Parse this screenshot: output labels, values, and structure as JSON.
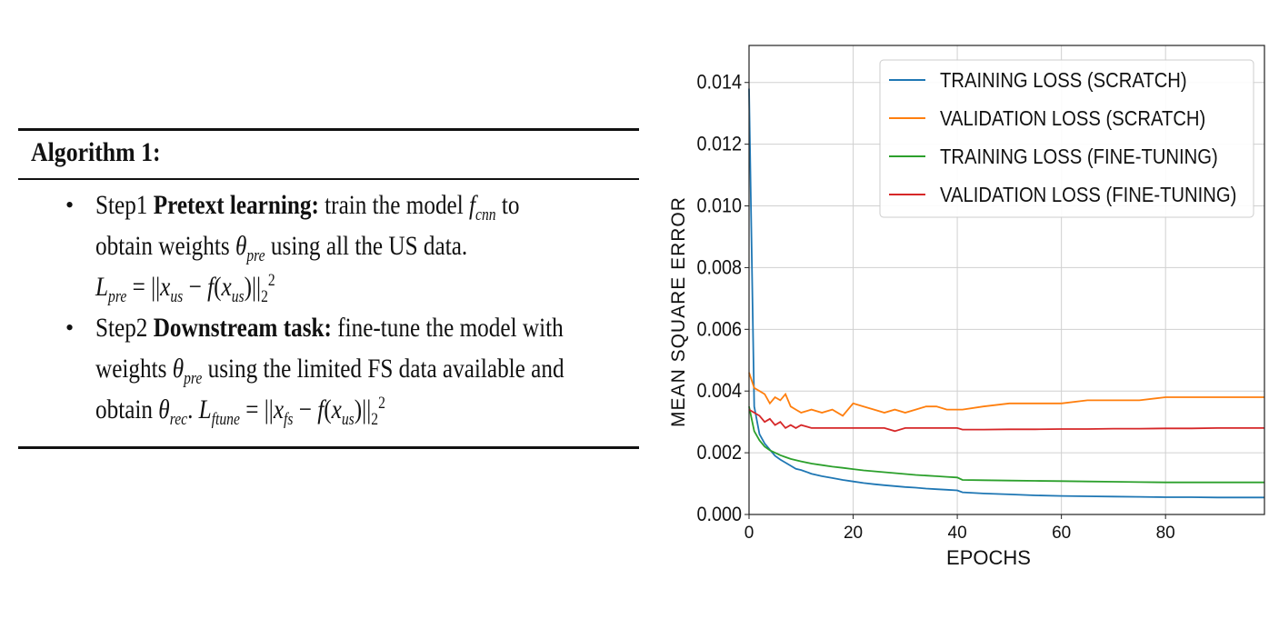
{
  "algorithm": {
    "title": "Algorithm 1:",
    "step1": {
      "line1_pre": "Step1 ",
      "line1_bold": "Pretext learning:",
      "line1_post": " train the model ",
      "f_sym": "f",
      "f_sub": "cnn",
      "line1_end": " to",
      "line2_pre": "obtain weights ",
      "theta_sym": "θ",
      "theta_sub": "pre",
      "line2_post": " using all the US data.",
      "loss_sym": "L",
      "loss_sub": "pre",
      "eq_a": " = ||",
      "x_sym": "x",
      "x_sub": "us",
      "eq_b": " − ",
      "eq_c": "f",
      "eq_d": "(",
      "eq_e": "x",
      "eq_f": "us",
      "eq_g": ")||",
      "sub2": "2",
      "sup2": "2"
    },
    "step2": {
      "line1_pre": "Step2 ",
      "line1_bold": "Downstream task:",
      "line1_post": " fine-tune the model with",
      "line2_pre": "weights ",
      "theta_sym": "θ",
      "theta_sub": "pre",
      "line2_post": " using the limited FS data available and",
      "line3_pre": "obtain ",
      "rec_sym": "θ",
      "rec_sub": "rec",
      "line3_mid": ". ",
      "loss_sym": "L",
      "loss_sub": "ftune",
      "eq_a": " = ||",
      "x_sym": "x",
      "x_sub": "fs",
      "eq_b": " − ",
      "eq_c": "f",
      "eq_d": "(",
      "eq_e": "x",
      "eq_f": "us",
      "eq_g": ")||",
      "sub2": "2",
      "sup2": "2"
    }
  },
  "chart_data": {
    "type": "line",
    "title": "",
    "xlabel": "EPOCHS",
    "ylabel": "MEAN SQUARE ERROR",
    "xlim": [
      0,
      99
    ],
    "ylim": [
      0,
      0.0152
    ],
    "x_ticks": [
      0,
      20,
      40,
      60,
      80
    ],
    "y_ticks": [
      0.0,
      0.002,
      0.004,
      0.006,
      0.008,
      0.01,
      0.012,
      0.014
    ],
    "y_tick_labels": [
      "0.000",
      "0.002",
      "0.004",
      "0.006",
      "0.008",
      "0.010",
      "0.012",
      "0.014"
    ],
    "grid": true,
    "legend_position": "top-right",
    "x": [
      0,
      1,
      2,
      3,
      4,
      5,
      6,
      7,
      8,
      9,
      10,
      12,
      14,
      16,
      18,
      20,
      22,
      24,
      26,
      28,
      30,
      32,
      34,
      36,
      38,
      40,
      41,
      45,
      50,
      55,
      60,
      65,
      70,
      75,
      80,
      85,
      90,
      95,
      99
    ],
    "series": [
      {
        "name": "TRAINING LOSS (SCRATCH)",
        "color": "#1f77b4",
        "values": [
          0.0138,
          0.0035,
          0.0026,
          0.0023,
          0.0021,
          0.0019,
          0.00178,
          0.00168,
          0.00158,
          0.00148,
          0.00144,
          0.00132,
          0.00124,
          0.00118,
          0.00112,
          0.00107,
          0.00102,
          0.00098,
          0.00095,
          0.00092,
          0.00089,
          0.00087,
          0.00084,
          0.00082,
          0.0008,
          0.00078,
          0.00072,
          0.00068,
          0.00065,
          0.00062,
          0.0006,
          0.00059,
          0.00058,
          0.00057,
          0.00056,
          0.00056,
          0.00055,
          0.00055,
          0.00055
        ]
      },
      {
        "name": "VALIDATION LOSS (SCRATCH)",
        "color": "#ff7f0e",
        "values": [
          0.0046,
          0.0041,
          0.004,
          0.0039,
          0.0036,
          0.0038,
          0.0037,
          0.0039,
          0.0035,
          0.0034,
          0.0033,
          0.0034,
          0.0033,
          0.0034,
          0.0032,
          0.0036,
          0.0035,
          0.0034,
          0.0033,
          0.0034,
          0.0033,
          0.0034,
          0.0035,
          0.0035,
          0.0034,
          0.0034,
          0.0034,
          0.0035,
          0.0036,
          0.0036,
          0.0036,
          0.0037,
          0.0037,
          0.0037,
          0.0038,
          0.0038,
          0.0038,
          0.0038,
          0.0038
        ]
      },
      {
        "name": "TRAINING LOSS (FINE-TUNING)",
        "color": "#2ca02c",
        "values": [
          0.0035,
          0.0027,
          0.0024,
          0.0022,
          0.00208,
          0.002,
          0.00192,
          0.00186,
          0.0018,
          0.00176,
          0.00172,
          0.00165,
          0.0016,
          0.00155,
          0.00151,
          0.00147,
          0.00143,
          0.0014,
          0.00137,
          0.00134,
          0.00131,
          0.00128,
          0.00126,
          0.00124,
          0.00122,
          0.0012,
          0.00112,
          0.00111,
          0.0011,
          0.00109,
          0.00108,
          0.00107,
          0.00106,
          0.00105,
          0.00104,
          0.00104,
          0.00104,
          0.00104,
          0.00104
        ]
      },
      {
        "name": "VALIDATION LOSS (FINE-TUNING)",
        "color": "#d62728",
        "values": [
          0.0034,
          0.0033,
          0.0032,
          0.003,
          0.0031,
          0.0029,
          0.003,
          0.0028,
          0.0029,
          0.0028,
          0.0029,
          0.0028,
          0.0028,
          0.0028,
          0.0028,
          0.0028,
          0.0028,
          0.0028,
          0.0028,
          0.0027,
          0.0028,
          0.0028,
          0.0028,
          0.0028,
          0.0028,
          0.0028,
          0.00275,
          0.00275,
          0.00276,
          0.00276,
          0.00277,
          0.00277,
          0.00278,
          0.00278,
          0.00279,
          0.00279,
          0.0028,
          0.0028,
          0.0028
        ]
      }
    ]
  }
}
